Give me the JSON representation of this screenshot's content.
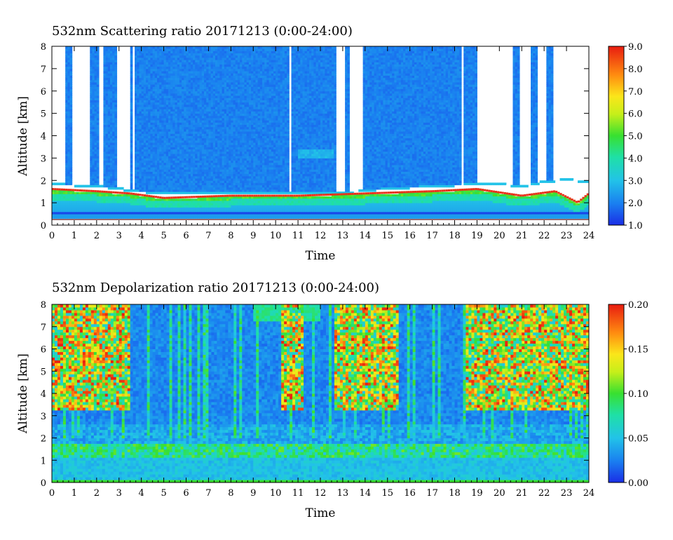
{
  "chart_data": [
    {
      "type": "heatmap",
      "title": "532nm Scattering ratio  20171213 (0:00-24:00)",
      "xlabel": "Time",
      "ylabel": "Altitude [km]",
      "xlim": [
        0,
        24
      ],
      "ylim": [
        0,
        8
      ],
      "x_ticks": [
        "0",
        "1",
        "2",
        "3",
        "4",
        "5",
        "6",
        "7",
        "8",
        "9",
        "10",
        "11",
        "12",
        "13",
        "14",
        "15",
        "16",
        "17",
        "18",
        "19",
        "20",
        "21",
        "22",
        "23",
        "24"
      ],
      "y_ticks": [
        "0",
        "1",
        "2",
        "3",
        "4",
        "5",
        "6",
        "7",
        "8"
      ],
      "colorbar": {
        "min": 1.0,
        "max": 9.0,
        "ticks": [
          "1.0",
          "2.0",
          "3.0",
          "4.0",
          "5.0",
          "6.0",
          "7.0",
          "8.0",
          "9.0"
        ]
      },
      "cloud_base_km": 1.5,
      "cloud_base_profile": [
        [
          0,
          1.6
        ],
        [
          2,
          1.5
        ],
        [
          3.5,
          1.4
        ],
        [
          5,
          1.2
        ],
        [
          8,
          1.3
        ],
        [
          11,
          1.3
        ],
        [
          14,
          1.4
        ],
        [
          17,
          1.5
        ],
        [
          19,
          1.6
        ],
        [
          21,
          1.3
        ],
        [
          22.5,
          1.5
        ],
        [
          23.5,
          1.0
        ],
        [
          24,
          1.4
        ]
      ],
      "cloud_top_profile": [
        [
          0,
          1.8
        ],
        [
          1,
          1.75
        ],
        [
          2,
          1.7
        ],
        [
          3,
          1.6
        ],
        [
          3.5,
          1.5
        ],
        [
          5,
          1.4
        ],
        [
          8,
          1.4
        ],
        [
          10,
          1.4
        ],
        [
          12,
          1.4
        ],
        [
          13,
          1.4
        ],
        [
          14,
          1.5
        ],
        [
          15,
          1.6
        ],
        [
          17,
          1.7
        ],
        [
          19,
          1.8
        ],
        [
          20,
          1.8
        ],
        [
          21,
          1.7
        ],
        [
          22,
          1.9
        ],
        [
          23,
          2.0
        ],
        [
          24,
          1.9
        ]
      ],
      "background_ratio": 2.0,
      "clear_intervals": [
        [
          0.05,
          0.65
        ],
        [
          0.95,
          1.75
        ],
        [
          2.15,
          2.3
        ],
        [
          2.85,
          3.45
        ],
        [
          3.6,
          3.7
        ],
        [
          10.6,
          10.75
        ],
        [
          12.75,
          13.15
        ],
        [
          13.3,
          13.85
        ],
        [
          18.3,
          18.45
        ],
        [
          19.0,
          20.55
        ],
        [
          20.9,
          21.4
        ],
        [
          21.7,
          22.1
        ],
        [
          22.4,
          24.0
        ]
      ],
      "grid": false,
      "legend": "colorbar-right"
    },
    {
      "type": "heatmap",
      "title": "532nm Depolarization ratio  20171213 (0:00-24:00)",
      "xlabel": "Time",
      "ylabel": "Altitude [km]",
      "xlim": [
        0,
        24
      ],
      "ylim": [
        0,
        8
      ],
      "x_ticks": [
        "0",
        "1",
        "2",
        "3",
        "4",
        "5",
        "6",
        "7",
        "8",
        "9",
        "10",
        "11",
        "12",
        "13",
        "14",
        "15",
        "16",
        "17",
        "18",
        "19",
        "20",
        "21",
        "22",
        "23",
        "24"
      ],
      "y_ticks": [
        "0",
        "1",
        "2",
        "3",
        "4",
        "5",
        "6",
        "7",
        "8"
      ],
      "colorbar": {
        "min": 0.0,
        "max": 0.2,
        "ticks": [
          "0.00",
          "0.05",
          "0.10",
          "0.15",
          "0.20"
        ]
      },
      "noisy_intervals": [
        [
          0,
          3.5
        ],
        [
          10.2,
          11.3
        ],
        [
          12.6,
          15.5
        ],
        [
          18.5,
          24
        ]
      ],
      "background_ratio": 0.03,
      "grid": false,
      "legend": "colorbar-right"
    }
  ]
}
